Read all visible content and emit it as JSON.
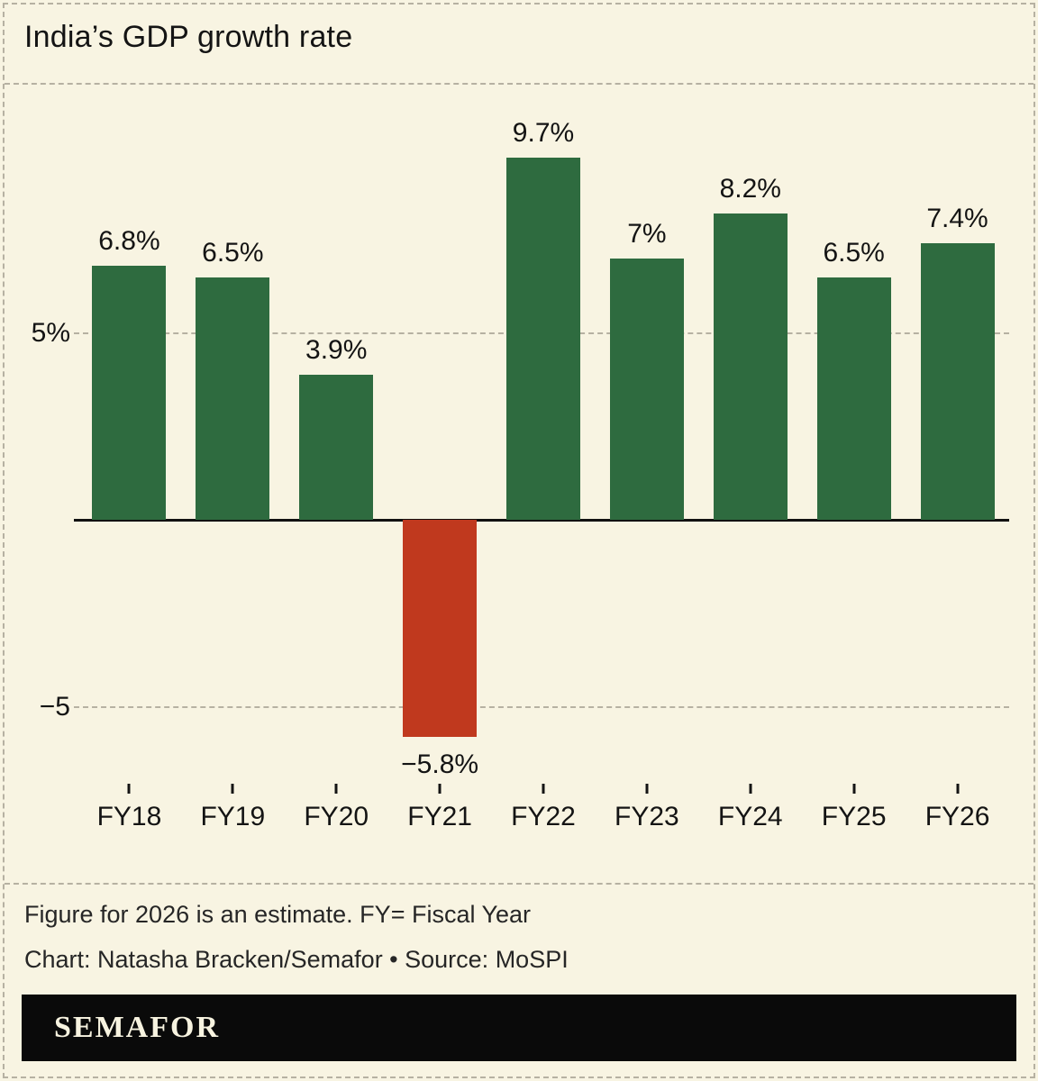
{
  "title": "India’s GDP growth rate",
  "chart_data": {
    "type": "bar",
    "title": "India’s GDP growth rate",
    "categories": [
      "FY18",
      "FY19",
      "FY20",
      "FY21",
      "FY22",
      "FY23",
      "FY24",
      "FY25",
      "FY26"
    ],
    "values": [
      6.8,
      6.5,
      3.9,
      -5.8,
      9.7,
      7.0,
      8.2,
      6.5,
      7.4
    ],
    "value_labels": [
      "6.8%",
      "6.5%",
      "3.9%",
      "−5.8%",
      "9.7%",
      "7%",
      "8.2%",
      "6.5%",
      "7.4%"
    ],
    "xlabel": "",
    "ylabel": "",
    "ylim": [
      -7.0,
      11.5
    ],
    "grid": "dashed-horizontal",
    "legend_position": "none",
    "gridlines": [
      {
        "value": 5,
        "label": "5%"
      },
      {
        "value": -5,
        "label": "−5"
      }
    ],
    "bar_color_positive": "#2e6b3f",
    "bar_color_negative": "#c0391e"
  },
  "notes": {
    "line1": "Figure for 2026 is an estimate. FY= Fiscal Year",
    "line2": "Chart: Natasha Bracken/Semafor • Source: MoSPI"
  },
  "footer": {
    "logo_text": "SEMAFOR"
  },
  "colors": {
    "background": "#f8f4e2",
    "dashed_lines": "#b6b1a2",
    "bar_positive": "#2e6b3f",
    "bar_negative": "#c0391e",
    "axis": "#111111",
    "text": "#141414",
    "logo_bar": "#0a0a0a",
    "logo_text": "#f7f3e0"
  }
}
